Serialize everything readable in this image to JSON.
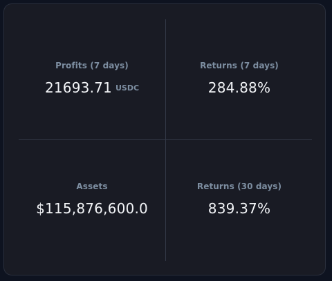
{
  "stats": {
    "profits_7d": {
      "label": "Profits (7 days)",
      "value": "21693.71",
      "unit": "USDC"
    },
    "returns_7d": {
      "label": "Returns (7 days)",
      "value": "284.88%"
    },
    "assets": {
      "label": "Assets",
      "value": "$115,876,600.0"
    },
    "returns_30d": {
      "label": "Returns (30 days)",
      "value": "839.37%"
    }
  },
  "colors": {
    "page_background": "#0e1320",
    "card_background": "#191b24",
    "divider": "#343a48",
    "label": "#7d8ea1",
    "value": "#f2f4f7"
  }
}
